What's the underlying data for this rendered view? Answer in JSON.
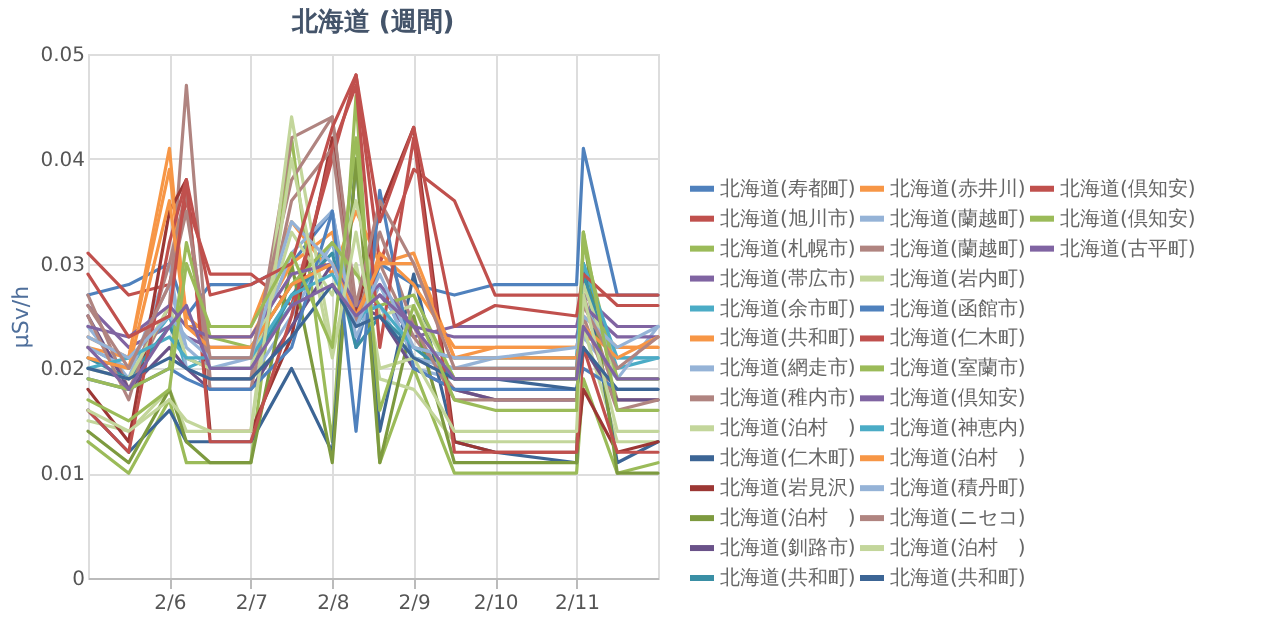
{
  "chart_data": {
    "type": "line",
    "title": "北海道 (週間)",
    "ylabel": "µSv/h",
    "legend": "right",
    "grid": true,
    "marker": "none",
    "line_style": "solid",
    "x": [
      "--02-05T00:00",
      "--02-05T12:00",
      "--02-06T00:00",
      "--02-06T05:00",
      "--02-06T12:00",
      "--02-07T00:00",
      "--02-07T12:00",
      "--02-08T00:00",
      "--02-08T07:00",
      "--02-08T14:00",
      "--02-09T00:00",
      "--02-09T12:00",
      "--02-10T00:00",
      "--02-11T00:00",
      "--02-11T02:00",
      "--02-11T12:00",
      "--02-12T00:00"
    ],
    "xlim": [
      "--02-05",
      "--02-12"
    ],
    "xticks": [
      {
        "value": "--02-06",
        "label": "2/6"
      },
      {
        "value": "--02-07",
        "label": "2/7"
      },
      {
        "value": "--02-08",
        "label": "2/8"
      },
      {
        "value": "--02-09",
        "label": "2/9"
      },
      {
        "value": "--02-10",
        "label": "2/10"
      },
      {
        "value": "--02-11",
        "label": "2/11"
      }
    ],
    "ylim": [
      0,
      0.05
    ],
    "yticks": [
      0,
      0.01,
      0.02,
      0.03,
      0.04,
      0.05
    ],
    "series": [
      {
        "name": "北海道(寿都町)",
        "color": "#4f81bd",
        "values": [
          0.027,
          0.028,
          0.03,
          0.025,
          0.028,
          0.028,
          0.03,
          0.035,
          0.022,
          0.03,
          0.028,
          0.027,
          0.028,
          0.028,
          0.041,
          0.027,
          0.027
        ]
      },
      {
        "name": "北海道(旭川市)",
        "color": "#c0504d",
        "values": [
          0.031,
          0.027,
          0.028,
          0.036,
          0.029,
          0.029,
          0.026,
          0.04,
          0.048,
          0.03,
          0.039,
          0.036,
          0.027,
          0.027,
          0.027,
          0.027,
          0.027
        ]
      },
      {
        "name": "北海道(札幌市)",
        "color": "#9bbb59",
        "values": [
          0.013,
          0.01,
          0.017,
          0.011,
          0.011,
          0.011,
          0.042,
          0.013,
          0.046,
          0.011,
          0.02,
          0.01,
          0.01,
          0.01,
          0.019,
          0.01,
          0.011
        ]
      },
      {
        "name": "北海道(帯広市)",
        "color": "#8064a2",
        "values": [
          0.026,
          0.022,
          0.024,
          0.023,
          0.022,
          0.022,
          0.028,
          0.03,
          0.025,
          0.027,
          0.023,
          0.024,
          0.024,
          0.024,
          0.027,
          0.024,
          0.024
        ]
      },
      {
        "name": "北海道(余市町)",
        "color": "#4bacc6",
        "values": [
          0.022,
          0.02,
          0.025,
          0.02,
          0.021,
          0.021,
          0.026,
          0.032,
          0.024,
          0.028,
          0.021,
          0.02,
          0.02,
          0.02,
          0.03,
          0.02,
          0.021
        ]
      },
      {
        "name": "北海道(共和町)",
        "color": "#f79646",
        "values": [
          0.022,
          0.021,
          0.041,
          0.024,
          0.024,
          0.024,
          0.034,
          0.029,
          0.035,
          0.03,
          0.031,
          0.021,
          0.022,
          0.022,
          0.023,
          0.022,
          0.022
        ]
      },
      {
        "name": "北海道(網走市)",
        "color": "#95b3d7",
        "values": [
          0.024,
          0.019,
          0.03,
          0.02,
          0.019,
          0.019,
          0.025,
          0.032,
          0.026,
          0.026,
          0.02,
          0.019,
          0.019,
          0.019,
          0.023,
          0.019,
          0.024
        ]
      },
      {
        "name": "北海道(稚内市)",
        "color": "#b08480",
        "values": [
          0.027,
          0.018,
          0.026,
          0.047,
          0.019,
          0.019,
          0.042,
          0.044,
          0.025,
          0.03,
          0.023,
          0.018,
          0.017,
          0.017,
          0.027,
          0.017,
          0.017
        ]
      },
      {
        "name": "北海道(泊村　)",
        "color": "#c3d69b",
        "values": [
          0.015,
          0.014,
          0.018,
          0.014,
          0.014,
          0.014,
          0.044,
          0.022,
          0.03,
          0.019,
          0.018,
          0.013,
          0.013,
          0.013,
          0.024,
          0.013,
          0.013
        ]
      },
      {
        "name": "北海道(仁木町)",
        "color": "#3c6595",
        "values": [
          0.016,
          0.012,
          0.016,
          0.013,
          0.013,
          0.013,
          0.02,
          0.012,
          0.04,
          0.014,
          0.029,
          0.013,
          0.012,
          0.011,
          0.03,
          0.011,
          0.013
        ]
      },
      {
        "name": "北海道(岩見沢)",
        "color": "#9c3734",
        "values": [
          0.018,
          0.013,
          0.035,
          0.038,
          0.014,
          0.014,
          0.023,
          0.042,
          0.025,
          0.035,
          0.043,
          0.013,
          0.012,
          0.012,
          0.018,
          0.012,
          0.013
        ]
      },
      {
        "name": "北海道(泊村　)",
        "color": "#7d9a3f",
        "values": [
          0.014,
          0.011,
          0.018,
          0.013,
          0.011,
          0.011,
          0.03,
          0.011,
          0.04,
          0.011,
          0.025,
          0.011,
          0.011,
          0.011,
          0.033,
          0.01,
          0.01
        ]
      },
      {
        "name": "北海道(釧路市)",
        "color": "#6a5289",
        "values": [
          0.025,
          0.018,
          0.022,
          0.02,
          0.018,
          0.018,
          0.024,
          0.03,
          0.026,
          0.025,
          0.02,
          0.018,
          0.017,
          0.017,
          0.022,
          0.017,
          0.017
        ]
      },
      {
        "name": "北海道(共和町)",
        "color": "#3a8fa5",
        "values": [
          0.021,
          0.019,
          0.024,
          0.021,
          0.02,
          0.02,
          0.027,
          0.031,
          0.022,
          0.025,
          0.022,
          0.019,
          0.019,
          0.019,
          0.029,
          0.019,
          0.019
        ]
      },
      {
        "name": "北海道(赤井川)",
        "color": "#f79646",
        "values": [
          0.023,
          0.021,
          0.039,
          0.025,
          0.023,
          0.023,
          0.03,
          0.033,
          0.024,
          0.031,
          0.028,
          0.022,
          0.022,
          0.022,
          0.025,
          0.022,
          0.022
        ]
      },
      {
        "name": "北海道(蘭越町)",
        "color": "#95b3d7",
        "values": [
          0.022,
          0.02,
          0.028,
          0.022,
          0.02,
          0.021,
          0.031,
          0.035,
          0.023,
          0.028,
          0.021,
          0.02,
          0.021,
          0.021,
          0.026,
          0.021,
          0.021
        ]
      },
      {
        "name": "北海道(蘭越町)",
        "color": "#b08480",
        "values": [
          0.025,
          0.017,
          0.03,
          0.037,
          0.018,
          0.018,
          0.036,
          0.041,
          0.024,
          0.033,
          0.024,
          0.017,
          0.017,
          0.017,
          0.025,
          0.016,
          0.017
        ]
      },
      {
        "name": "北海道(岩内町)",
        "color": "#c3d69b",
        "values": [
          0.02,
          0.019,
          0.026,
          0.021,
          0.02,
          0.02,
          0.033,
          0.027,
          0.036,
          0.025,
          0.026,
          0.019,
          0.019,
          0.019,
          0.028,
          0.019,
          0.019
        ]
      },
      {
        "name": "北海道(函館市)",
        "color": "#4f81bd",
        "values": [
          0.019,
          0.018,
          0.02,
          0.019,
          0.018,
          0.018,
          0.022,
          0.035,
          0.014,
          0.037,
          0.02,
          0.018,
          0.018,
          0.018,
          0.02,
          0.018,
          0.018
        ]
      },
      {
        "name": "北海道(仁木町)",
        "color": "#c0504d",
        "values": [
          0.016,
          0.012,
          0.032,
          0.038,
          0.013,
          0.013,
          0.025,
          0.041,
          0.047,
          0.022,
          0.042,
          0.012,
          0.012,
          0.012,
          0.022,
          0.012,
          0.012
        ]
      },
      {
        "name": "北海道(室蘭市)",
        "color": "#9bbb59",
        "values": [
          0.019,
          0.018,
          0.02,
          0.032,
          0.023,
          0.022,
          0.028,
          0.032,
          0.029,
          0.026,
          0.027,
          0.019,
          0.019,
          0.019,
          0.032,
          0.019,
          0.019
        ]
      },
      {
        "name": "北海道(倶知安)",
        "color": "#8064a2",
        "values": [
          0.024,
          0.023,
          0.026,
          0.024,
          0.023,
          0.023,
          0.029,
          0.03,
          0.026,
          0.028,
          0.024,
          0.023,
          0.023,
          0.023,
          0.026,
          0.023,
          0.023
        ]
      },
      {
        "name": "北海道(神恵内)",
        "color": "#4bacc6",
        "values": [
          0.02,
          0.021,
          0.023,
          0.021,
          0.021,
          0.021,
          0.027,
          0.029,
          0.025,
          0.026,
          0.022,
          0.021,
          0.021,
          0.021,
          0.03,
          0.021,
          0.021
        ]
      },
      {
        "name": "北海道(泊村　)",
        "color": "#f79646",
        "values": [
          0.021,
          0.02,
          0.036,
          0.024,
          0.022,
          0.022,
          0.028,
          0.03,
          0.025,
          0.03,
          0.03,
          0.021,
          0.021,
          0.021,
          0.024,
          0.021,
          0.023
        ]
      },
      {
        "name": "北海道(積丹町)",
        "color": "#95b3d7",
        "values": [
          0.023,
          0.021,
          0.025,
          0.023,
          0.021,
          0.021,
          0.034,
          0.03,
          0.024,
          0.029,
          0.022,
          0.021,
          0.021,
          0.022,
          0.025,
          0.022,
          0.024
        ]
      },
      {
        "name": "北海道(ニセコ)",
        "color": "#b08480",
        "values": [
          0.026,
          0.02,
          0.028,
          0.035,
          0.021,
          0.021,
          0.038,
          0.044,
          0.026,
          0.036,
          0.03,
          0.02,
          0.02,
          0.02,
          0.026,
          0.02,
          0.023
        ]
      },
      {
        "name": "北海道(泊村　)",
        "color": "#c3d69b",
        "values": [
          0.016,
          0.014,
          0.017,
          0.015,
          0.014,
          0.014,
          0.04,
          0.021,
          0.033,
          0.02,
          0.021,
          0.014,
          0.014,
          0.014,
          0.027,
          0.014,
          0.014
        ]
      },
      {
        "name": "北海道(共和町)",
        "color": "#3c6595",
        "values": [
          0.02,
          0.019,
          0.021,
          0.02,
          0.019,
          0.019,
          0.023,
          0.028,
          0.024,
          0.025,
          0.021,
          0.019,
          0.019,
          0.018,
          0.022,
          0.018,
          0.018
        ]
      },
      {
        "name": "北海道(倶知安)",
        "color": "#c0504d",
        "values": [
          0.029,
          0.023,
          0.025,
          0.038,
          0.027,
          0.028,
          0.03,
          0.043,
          0.048,
          0.034,
          0.043,
          0.024,
          0.026,
          0.025,
          0.029,
          0.026,
          0.026
        ]
      },
      {
        "name": "北海道(倶知安)",
        "color": "#9bbb59",
        "values": [
          0.017,
          0.015,
          0.018,
          0.03,
          0.024,
          0.024,
          0.031,
          0.022,
          0.042,
          0.016,
          0.026,
          0.017,
          0.016,
          0.016,
          0.033,
          0.016,
          0.016
        ]
      },
      {
        "name": "北海道(古平町)",
        "color": "#8064a2",
        "values": [
          0.022,
          0.018,
          0.024,
          0.026,
          0.02,
          0.02,
          0.026,
          0.028,
          0.025,
          0.027,
          0.024,
          0.019,
          0.019,
          0.019,
          0.024,
          0.019,
          0.019
        ]
      }
    ]
  }
}
